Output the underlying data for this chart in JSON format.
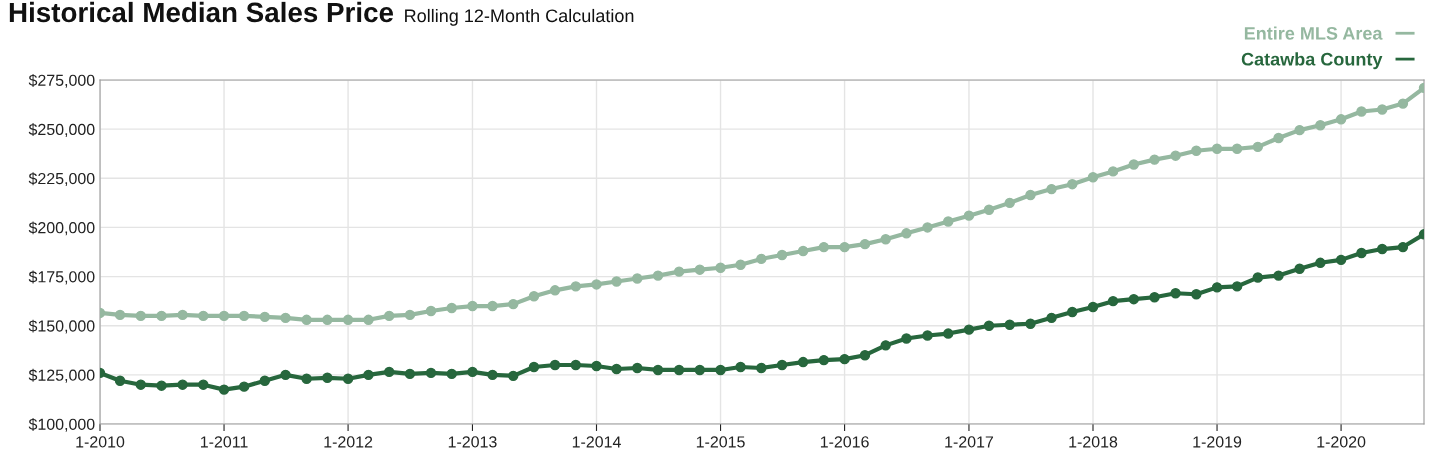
{
  "chart_data": {
    "type": "line",
    "title": "Historical Median Sales Price",
    "subtitle": "Rolling 12-Month Calculation",
    "x": [
      "2010-01",
      "2010-03",
      "2010-05",
      "2010-07",
      "2010-09",
      "2010-11",
      "2011-01",
      "2011-03",
      "2011-05",
      "2011-07",
      "2011-09",
      "2011-11",
      "2012-01",
      "2012-03",
      "2012-05",
      "2012-07",
      "2012-09",
      "2012-11",
      "2013-01",
      "2013-03",
      "2013-05",
      "2013-07",
      "2013-09",
      "2013-11",
      "2014-01",
      "2014-03",
      "2014-05",
      "2014-07",
      "2014-09",
      "2014-11",
      "2015-01",
      "2015-03",
      "2015-05",
      "2015-07",
      "2015-09",
      "2015-11",
      "2016-01",
      "2016-03",
      "2016-05",
      "2016-07",
      "2016-09",
      "2016-11",
      "2017-01",
      "2017-03",
      "2017-05",
      "2017-07",
      "2017-09",
      "2017-11",
      "2018-01",
      "2018-03",
      "2018-05",
      "2018-07",
      "2018-09",
      "2018-11",
      "2019-01",
      "2019-03",
      "2019-05",
      "2019-07",
      "2019-09",
      "2019-11",
      "2020-01",
      "2020-03",
      "2020-05",
      "2020-07",
      "2020-09"
    ],
    "series": [
      {
        "name": "Entire MLS Area",
        "color": "#95b8a0",
        "values": [
          156500,
          155500,
          155000,
          155000,
          155500,
          155000,
          155000,
          155000,
          154500,
          154000,
          153000,
          153000,
          153000,
          153000,
          155000,
          155500,
          157500,
          159000,
          160000,
          160000,
          161000,
          165000,
          168000,
          170000,
          171000,
          172500,
          174000,
          175500,
          177500,
          178500,
          179500,
          181000,
          184000,
          186000,
          188000,
          190000,
          190000,
          191500,
          194000,
          197000,
          200000,
          203000,
          206000,
          209000,
          212500,
          216500,
          219500,
          222000,
          225500,
          228500,
          232000,
          234500,
          236500,
          239000,
          240000,
          240000,
          241000,
          245500,
          249500,
          252000,
          255000,
          259000,
          260000,
          263000,
          271000
        ]
      },
      {
        "name": "Catawba County",
        "color": "#27673d",
        "values": [
          126000,
          122000,
          120000,
          119500,
          120000,
          120000,
          117500,
          119000,
          122000,
          125000,
          123000,
          123500,
          123000,
          125000,
          126500,
          125500,
          126000,
          125500,
          126500,
          125000,
          124500,
          129000,
          130000,
          130000,
          129500,
          128000,
          128500,
          127500,
          127500,
          127500,
          127500,
          129000,
          128500,
          130000,
          131500,
          132500,
          133000,
          135000,
          140000,
          143500,
          145000,
          146000,
          148000,
          150000,
          150500,
          151000,
          154000,
          157000,
          159500,
          162500,
          163500,
          164500,
          166500,
          166000,
          169500,
          170000,
          174500,
          175500,
          179000,
          182000,
          183500,
          187000,
          189000,
          190000,
          196500
        ]
      }
    ],
    "xlim": [
      "2010-01",
      "2020-09"
    ],
    "xticks": [
      {
        "value": "2010-01",
        "label": "1-2010"
      },
      {
        "value": "2011-01",
        "label": "1-2011"
      },
      {
        "value": "2012-01",
        "label": "1-2012"
      },
      {
        "value": "2013-01",
        "label": "1-2013"
      },
      {
        "value": "2014-01",
        "label": "1-2014"
      },
      {
        "value": "2015-01",
        "label": "1-2015"
      },
      {
        "value": "2016-01",
        "label": "1-2016"
      },
      {
        "value": "2017-01",
        "label": "1-2017"
      },
      {
        "value": "2018-01",
        "label": "1-2018"
      },
      {
        "value": "2019-01",
        "label": "1-2019"
      },
      {
        "value": "2020-01",
        "label": "1-2020"
      }
    ],
    "ylim": [
      100000,
      275000
    ],
    "yticks": [
      {
        "value": 100000,
        "label": "$100,000"
      },
      {
        "value": 125000,
        "label": "$125,000"
      },
      {
        "value": 150000,
        "label": "$150,000"
      },
      {
        "value": 175000,
        "label": "$175,000"
      },
      {
        "value": 200000,
        "label": "$200,000"
      },
      {
        "value": 225000,
        "label": "$225,000"
      },
      {
        "value": 250000,
        "label": "$250,000"
      },
      {
        "value": 275000,
        "label": "$275,000"
      }
    ],
    "grid": true,
    "legend": "top right",
    "marker": "circle",
    "line_style": "solid"
  }
}
